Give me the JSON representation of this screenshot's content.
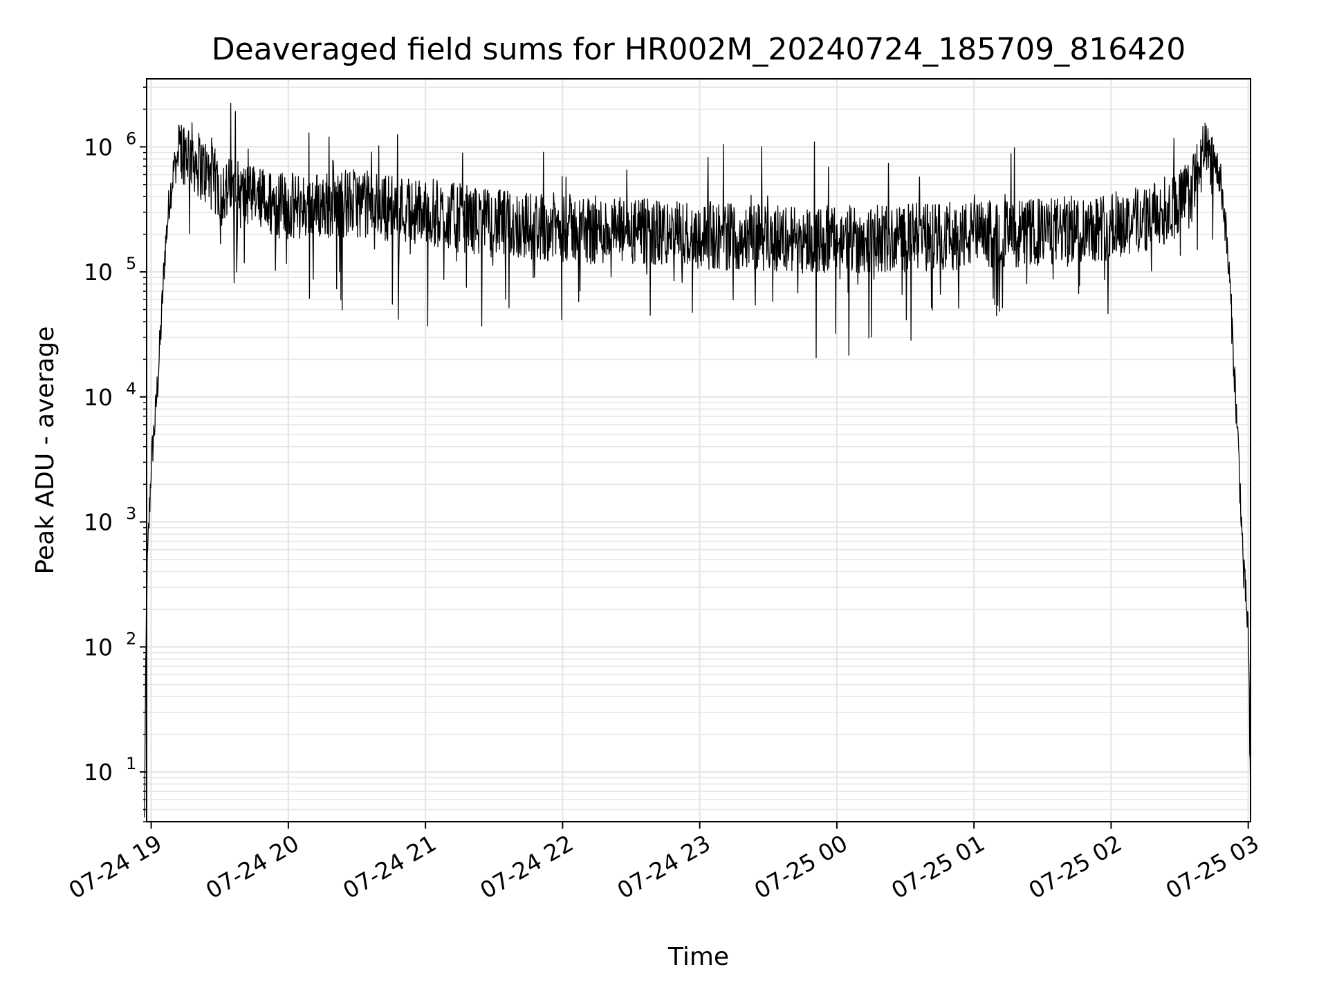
{
  "chart_data": {
    "type": "line",
    "title": "Deaveraged field sums for HR002M_20240724_185709_816420",
    "xlabel": "Time",
    "ylabel": "Peak ADU - average",
    "yscale": "log",
    "ylim": [
      4,
      3500000
    ],
    "xlim": [
      "2024-07-24 18:58",
      "2024-07-25 03:01"
    ],
    "x_ticks": [
      {
        "value": "2024-07-24 19:00",
        "label": "07-24 19"
      },
      {
        "value": "2024-07-24 20:00",
        "label": "07-24 20"
      },
      {
        "value": "2024-07-24 21:00",
        "label": "07-24 21"
      },
      {
        "value": "2024-07-24 22:00",
        "label": "07-24 22"
      },
      {
        "value": "2024-07-24 23:00",
        "label": "07-24 23"
      },
      {
        "value": "2024-07-25 00:00",
        "label": "07-25 00"
      },
      {
        "value": "2024-07-25 01:00",
        "label": "07-25 01"
      },
      {
        "value": "2024-07-25 02:00",
        "label": "07-25 02"
      },
      {
        "value": "2024-07-25 03:00",
        "label": "07-25 03"
      }
    ],
    "y_ticks": [
      {
        "value": 10,
        "base": "10",
        "exp": "1"
      },
      {
        "value": 100,
        "base": "10",
        "exp": "2"
      },
      {
        "value": 1000,
        "base": "10",
        "exp": "3"
      },
      {
        "value": 10000,
        "base": "10",
        "exp": "4"
      },
      {
        "value": 100000,
        "base": "10",
        "exp": "5"
      },
      {
        "value": 1000000,
        "base": "10",
        "exp": "6"
      }
    ],
    "grid": true,
    "line_color": "#000000",
    "grid_color": "#e6e6e6",
    "series": [
      {
        "x": [
          "2024-07-24 18:57",
          "2024-07-24 18:58",
          "2024-07-24 18:59",
          "2024-07-24 19:00",
          "2024-07-24 19:02",
          "2024-07-24 19:04",
          "2024-07-24 19:06",
          "2024-07-24 19:08",
          "2024-07-24 19:10",
          "2024-07-24 19:13",
          "2024-07-24 19:16",
          "2024-07-24 19:20",
          "2024-07-24 19:30",
          "2024-07-24 19:45",
          "2024-07-24 20:00",
          "2024-07-24 20:30",
          "2024-07-24 21:00",
          "2024-07-24 21:30",
          "2024-07-24 22:00",
          "2024-07-24 22:30",
          "2024-07-24 23:00",
          "2024-07-24 23:30",
          "2024-07-25 00:00",
          "2024-07-25 00:30",
          "2024-07-25 01:00",
          "2024-07-25 01:30",
          "2024-07-25 02:00",
          "2024-07-25 02:20",
          "2024-07-25 02:35",
          "2024-07-25 02:40",
          "2024-07-25 02:45",
          "2024-07-25 02:48",
          "2024-07-25 02:50",
          "2024-07-25 02:52",
          "2024-07-25 02:54",
          "2024-07-25 02:56",
          "2024-07-25 02:58",
          "2024-07-25 03:00",
          "2024-07-25 03:01"
        ],
        "y": [
          4,
          300,
          1000,
          3000,
          8000,
          30000,
          150000,
          400000,
          700000,
          1000000,
          1000000,
          800000,
          500000,
          400000,
          350000,
          380000,
          320000,
          260000,
          240000,
          220000,
          210000,
          200000,
          190000,
          200000,
          210000,
          220000,
          250000,
          300000,
          450000,
          900000,
          800000,
          550000,
          250000,
          80000,
          15000,
          3000,
          400,
          150,
          5
        ]
      }
    ]
  }
}
